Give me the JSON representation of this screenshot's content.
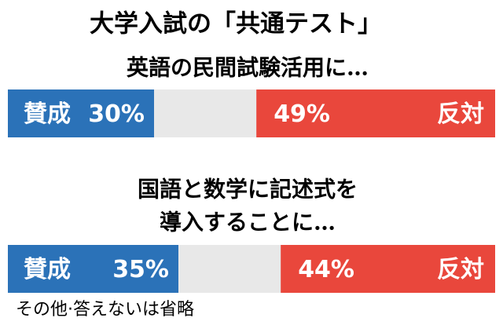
{
  "title": "大学入試の「共通テスト」",
  "footnote": "その他·答えないは省略",
  "chart_data": [
    {
      "type": "bar",
      "subtitle": [
        "英語の民間試験活用に…"
      ],
      "xlim": [
        0,
        100
      ],
      "series": [
        {
          "name": "賛成",
          "color": "#2b72b8",
          "values": [
            30
          ],
          "value_labels": [
            "30%"
          ]
        },
        {
          "name": "反対",
          "color": "#e9473c",
          "values": [
            49
          ],
          "value_labels": [
            "49%"
          ]
        }
      ]
    },
    {
      "type": "bar",
      "subtitle": [
        "国語と数学に記述式を",
        "導入することに…"
      ],
      "xlim": [
        0,
        100
      ],
      "series": [
        {
          "name": "賛成",
          "color": "#2b72b8",
          "values": [
            35
          ],
          "value_labels": [
            "35%"
          ]
        },
        {
          "name": "反対",
          "color": "#e9473c",
          "values": [
            44
          ],
          "value_labels": [
            "44%"
          ]
        }
      ]
    }
  ]
}
